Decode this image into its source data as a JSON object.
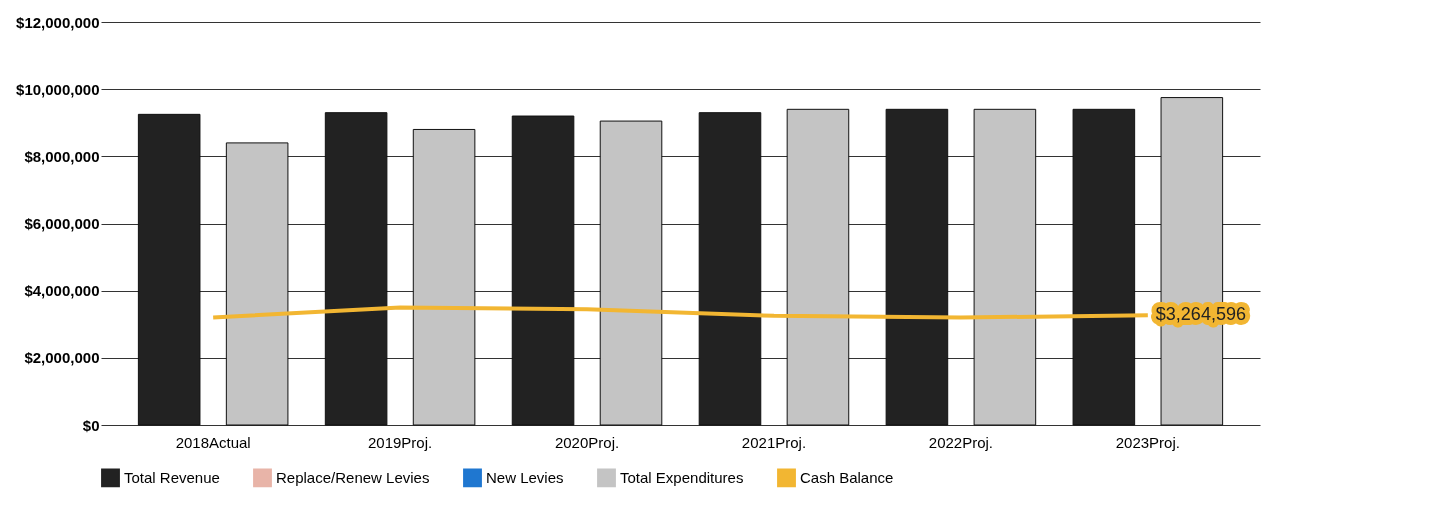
{
  "chart_data": {
    "type": "bar",
    "categories": [
      "2018Actual",
      "2019Proj.",
      "2020Proj.",
      "2021Proj.",
      "2022Proj.",
      "2023Proj."
    ],
    "series": [
      {
        "name": "Total Revenue",
        "color": "#222222",
        "values": [
          9250000,
          9300000,
          9200000,
          9300000,
          9400000,
          9400000
        ]
      },
      {
        "name": "Replace/Renew Levies",
        "color": "#e8b4a8",
        "values": [
          null,
          null,
          null,
          null,
          null,
          null
        ]
      },
      {
        "name": "New Levies",
        "color": "#1f77d0",
        "values": [
          null,
          null,
          null,
          null,
          null,
          null
        ]
      },
      {
        "name": "Total Expenditures",
        "color": "#c4c4c4",
        "values": [
          8400000,
          8800000,
          9050000,
          9400000,
          9400000,
          9750000
        ]
      },
      {
        "name": "Cash Balance",
        "type": "line",
        "color": "#f2b632",
        "values": [
          3200000,
          3500000,
          3450000,
          3250000,
          3200000,
          3264596
        ],
        "value_labels": [
          null,
          null,
          null,
          null,
          null,
          "$3,264,596"
        ]
      }
    ],
    "ylim": [
      0,
      12000000
    ],
    "yticks": [
      {
        "value": 0,
        "label": "$0"
      },
      {
        "value": 2000000,
        "label": "$2,000,000"
      },
      {
        "value": 4000000,
        "label": "$4,000,000"
      },
      {
        "value": 6000000,
        "label": "$6,000,000"
      },
      {
        "value": 8000000,
        "label": "$8,000,000"
      },
      {
        "value": 10000000,
        "label": "$10,000,000"
      },
      {
        "value": 12000000,
        "label": "$12,000,000"
      }
    ],
    "grid": "y",
    "legend": "bottom"
  }
}
